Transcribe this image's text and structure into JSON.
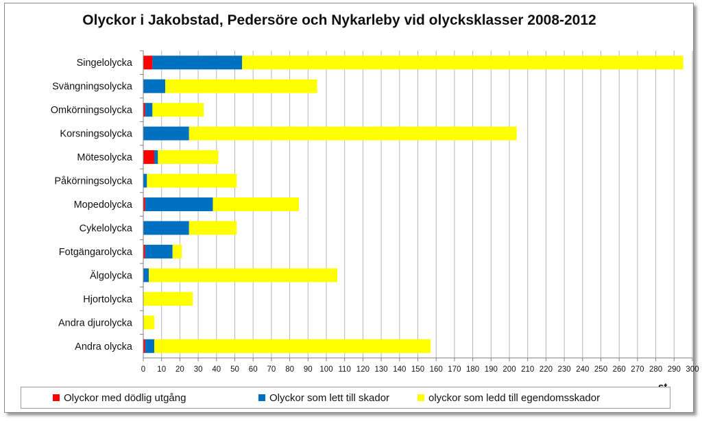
{
  "chart_data": {
    "type": "bar",
    "orientation": "horizontal",
    "stacked": true,
    "title": "Olyckor i Jakobstad, Pedersöre och Nykarleby vid olycksklasser 2008-2012",
    "xlabel": "st.",
    "xlim": [
      0,
      300
    ],
    "xticks": [
      0,
      10,
      20,
      30,
      40,
      50,
      60,
      70,
      80,
      90,
      100,
      110,
      120,
      130,
      140,
      150,
      160,
      170,
      180,
      190,
      200,
      210,
      220,
      230,
      240,
      250,
      260,
      270,
      280,
      290,
      300
    ],
    "grid": true,
    "legend_position": "bottom",
    "categories": [
      "Singelolycka",
      "Svängningsolycka",
      "Omkörningsolycka",
      "Korsningsolycka",
      "Mötesolycka",
      "Påkörningsolycka",
      "Mopedolycka",
      "Cykelolycka",
      "Fotgängarolycka",
      "Älgolycka",
      "Hjortolycka",
      "Andra djurolycka",
      "Andra olycka"
    ],
    "series": [
      {
        "name": "Olyckor med dödlig utgång",
        "color": "#ff0000",
        "values": [
          5,
          0,
          1,
          0,
          6,
          0,
          1,
          0,
          1,
          0,
          0,
          0,
          1
        ]
      },
      {
        "name": "Olyckor som lett till skador",
        "color": "#0070c0",
        "values": [
          49,
          12,
          4,
          25,
          2,
          2,
          37,
          25,
          15,
          3,
          0,
          0,
          5
        ]
      },
      {
        "name": "olyckor som ledd till egendomsskador",
        "color": "#ffff00",
        "values": [
          241,
          83,
          28,
          179,
          33,
          49,
          47,
          26,
          5,
          103,
          27,
          6,
          151
        ]
      }
    ]
  }
}
